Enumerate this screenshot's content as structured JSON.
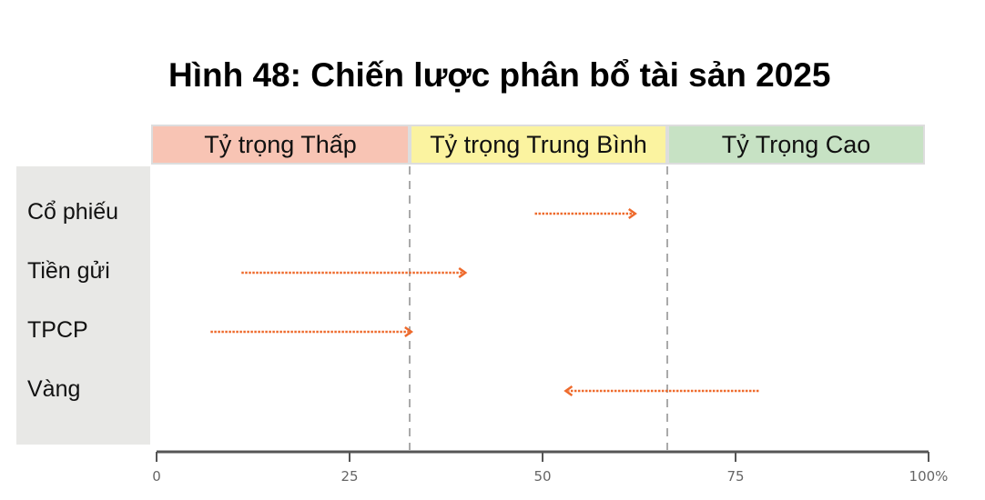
{
  "chart_data": {
    "type": "arrow-range",
    "title": "Hình 48: Chiến lược phân bổ tài sản 2025",
    "zones": [
      {
        "label": "Tỷ trọng Thấp",
        "from": 0,
        "to": 33,
        "color": "#f8c4b4"
      },
      {
        "label": "Tỷ trọng Trung Bình",
        "from": 33,
        "to": 66,
        "color": "#fbf3a0"
      },
      {
        "label": "Tỷ Trọng Cao",
        "from": 66,
        "to": 100,
        "color": "#c7e2c4"
      }
    ],
    "categories": [
      "Cổ phiếu",
      "Tiền gửi",
      "TPCP",
      "Vàng"
    ],
    "arrows": [
      {
        "category": "Cổ phiếu",
        "from": 49,
        "to": 62
      },
      {
        "category": "Tiền gửi",
        "from": 11,
        "to": 40
      },
      {
        "category": "TPCP",
        "from": 7,
        "to": 33
      },
      {
        "category": "Vàng",
        "from": 78,
        "to": 53
      }
    ],
    "xlim": [
      0,
      100
    ],
    "xticks": [
      "0",
      "25",
      "50",
      "75",
      "100%"
    ],
    "xtick_values": [
      0,
      25,
      50,
      75,
      100
    ],
    "arrow_color": "#ee6a2c",
    "grid": false
  }
}
